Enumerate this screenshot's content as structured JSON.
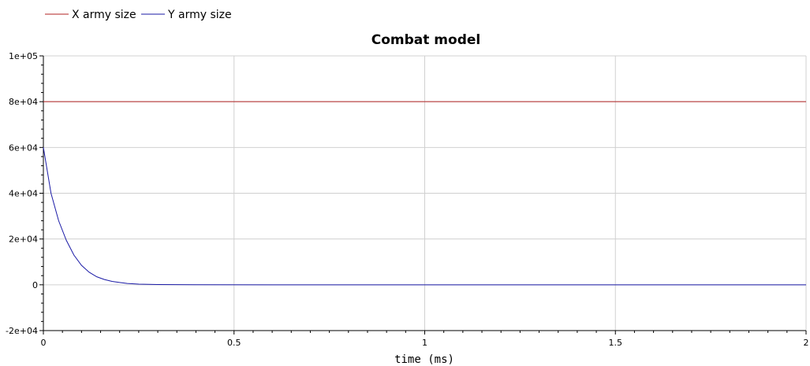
{
  "chart_data": {
    "type": "line",
    "title": "Combat model",
    "xlabel": "time (ms)",
    "ylabel": "",
    "xlim": [
      0,
      2
    ],
    "ylim": [
      -20000,
      100000
    ],
    "grid": true,
    "legend_position": "top-left",
    "x_ticks": [
      0,
      0.5,
      1,
      1.5,
      2
    ],
    "x_tick_labels": [
      "0",
      "0.5",
      "1",
      "1.5",
      "2"
    ],
    "y_ticks": [
      -20000,
      0,
      20000,
      40000,
      60000,
      80000,
      100000
    ],
    "y_tick_labels": [
      "-2e+04",
      "0",
      "2e+04",
      "4e+04",
      "6e+04",
      "8e+04",
      "1e+05"
    ],
    "series": [
      {
        "name": "X army size",
        "color": "#b22222",
        "x": [
          0,
          0.5,
          1,
          1.5,
          2
        ],
        "y": [
          80000,
          80000,
          80000,
          80000,
          80000
        ]
      },
      {
        "name": "Y army size",
        "color": "#1a1aa6",
        "x": [
          0,
          0.02,
          0.04,
          0.06,
          0.08,
          0.1,
          0.12,
          0.14,
          0.16,
          0.18,
          0.2,
          0.22,
          0.25,
          0.3,
          0.4,
          0.6,
          1.0,
          1.5,
          2.0
        ],
        "y": [
          60000,
          40000,
          28000,
          19500,
          13000,
          8500,
          5500,
          3500,
          2300,
          1500,
          1000,
          600,
          300,
          100,
          20,
          0,
          0,
          0,
          0
        ]
      }
    ]
  }
}
